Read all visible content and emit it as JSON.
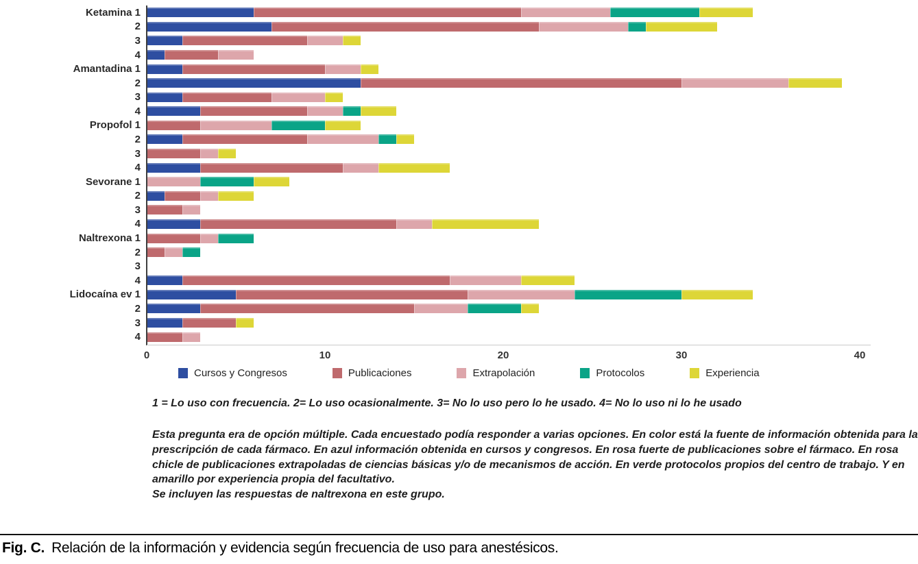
{
  "chart_data": {
    "type": "bar",
    "orientation": "horizontal",
    "stacked": true,
    "title": "",
    "xlabel": "",
    "ylabel": "",
    "xlim": [
      0,
      40
    ],
    "x_ticks": [
      0,
      10,
      20,
      30,
      40
    ],
    "grid": false,
    "legend_position": "bottom",
    "series": [
      {
        "name": "Cursos y Congresos",
        "color": "#2e4ea1"
      },
      {
        "name": "Publicaciones",
        "color": "#bf6a6d"
      },
      {
        "name": "Extrapolación",
        "color": "#dda6ab"
      },
      {
        "name": "Protocolos",
        "color": "#0aa487"
      },
      {
        "name": "Experiencia",
        "color": "#ddd637"
      }
    ],
    "rows": [
      {
        "label": "Ketamina 1",
        "values": [
          6,
          15,
          5,
          5,
          3
        ]
      },
      {
        "label": "2",
        "values": [
          7,
          15,
          5,
          1,
          4
        ]
      },
      {
        "label": "3",
        "values": [
          2,
          7,
          2,
          0,
          1
        ]
      },
      {
        "label": "4",
        "values": [
          1,
          3,
          2,
          0,
          0
        ]
      },
      {
        "label": "Amantadina 1",
        "values": [
          2,
          8,
          2,
          0,
          1
        ]
      },
      {
        "label": "2",
        "values": [
          12,
          18,
          6,
          0,
          3
        ]
      },
      {
        "label": "3",
        "values": [
          2,
          5,
          3,
          0,
          1
        ]
      },
      {
        "label": "4",
        "values": [
          3,
          6,
          2,
          1,
          2
        ]
      },
      {
        "label": "Propofol 1",
        "values": [
          0,
          3,
          4,
          3,
          2
        ]
      },
      {
        "label": "2",
        "values": [
          2,
          7,
          4,
          1,
          1
        ]
      },
      {
        "label": "3",
        "values": [
          0,
          3,
          1,
          0,
          1
        ]
      },
      {
        "label": "4",
        "values": [
          3,
          8,
          2,
          0,
          4
        ]
      },
      {
        "label": "Sevorane 1",
        "values": [
          0,
          0,
          3,
          3,
          2
        ]
      },
      {
        "label": "2",
        "values": [
          1,
          2,
          1,
          0,
          2
        ]
      },
      {
        "label": "3",
        "values": [
          0,
          2,
          1,
          0,
          0
        ]
      },
      {
        "label": "4",
        "values": [
          3,
          11,
          2,
          0,
          6
        ]
      },
      {
        "label": "Naltrexona 1",
        "values": [
          0,
          3,
          1,
          2,
          0
        ]
      },
      {
        "label": "2",
        "values": [
          0,
          1,
          1,
          1,
          0
        ]
      },
      {
        "label": "3",
        "values": [
          0,
          0,
          0,
          0,
          0
        ]
      },
      {
        "label": "4",
        "values": [
          2,
          15,
          4,
          0,
          3
        ]
      },
      {
        "label": "Lidocaína ev 1",
        "values": [
          5,
          13,
          6,
          6,
          4
        ]
      },
      {
        "label": "2",
        "values": [
          3,
          12,
          3,
          3,
          1
        ]
      },
      {
        "label": "3",
        "values": [
          2,
          3,
          0,
          0,
          1
        ]
      },
      {
        "label": "4",
        "values": [
          0,
          2,
          1,
          0,
          0
        ]
      }
    ]
  },
  "legend": {
    "items": [
      {
        "label": "Cursos y Congresos",
        "color": "#2e4ea1"
      },
      {
        "label": "Publicaciones",
        "color": "#bf6a6d"
      },
      {
        "label": "Extrapolación",
        "color": "#dda6ab"
      },
      {
        "label": "Protocolos",
        "color": "#0aa487"
      },
      {
        "label": "Experiencia",
        "color": "#ddd637"
      }
    ]
  },
  "footnotes": {
    "scale": "1 = Lo uso con frecuencia. 2= Lo uso ocasionalmente. 3= No lo uso pero lo he usado. 4= No lo uso ni lo he usado",
    "explanation": "Esta pregunta era de opción múltiple. Cada encuestado podía responder a varias opciones. En color está la fuente de información obtenida para la prescripción de cada fármaco. En azul información obtenida en cursos y congresos. En rosa fuerte de publicaciones sobre el fármaco. En rosa chicle de publicaciones extrapoladas de ciencias básicas y/o de mecanismos de acción. En verde protocolos propios del centro de trabajo. Y en amarillo por experiencia propia del facultativo.",
    "inclusion_note": "Se incluyen las respuestas de naltrexona en este grupo."
  },
  "caption": {
    "label": "Fig. C.",
    "text": "Relación de la información y evidencia según frecuencia de uso para anestésicos."
  }
}
